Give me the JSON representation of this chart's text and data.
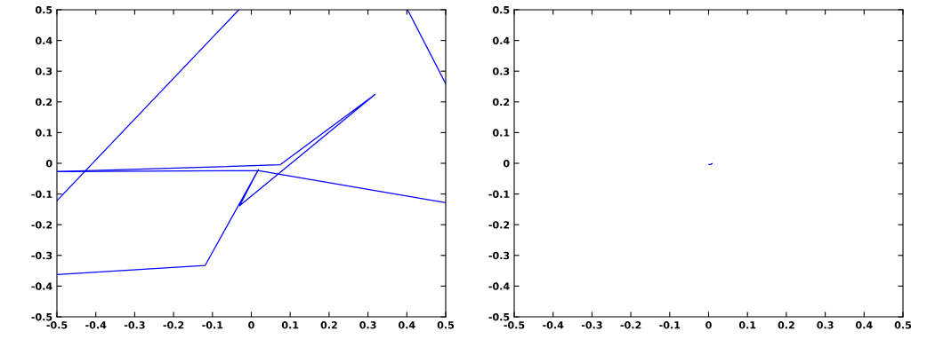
{
  "chart_data": [
    {
      "type": "line",
      "xlim": [
        -0.5,
        0.5
      ],
      "ylim": [
        -0.5,
        0.5
      ],
      "xticks": [
        -0.5,
        -0.4,
        -0.3,
        -0.2,
        -0.1,
        0,
        0.1,
        0.2,
        0.3,
        0.4,
        0.5
      ],
      "yticks": [
        -0.5,
        -0.4,
        -0.3,
        -0.2,
        -0.1,
        0,
        0.1,
        0.2,
        0.3,
        0.4,
        0.5
      ],
      "grid": false,
      "legend": false,
      "series": [
        {
          "color": "#0000ff",
          "x": [
            -0.5,
            -0.119,
            0.018,
            -0.03,
            0.318,
            0.074,
            -0.5
          ],
          "values": [
            -0.362,
            -0.333,
            -0.021,
            -0.138,
            0.224,
            -0.005,
            -0.027
          ]
        },
        {
          "color": "#0000ff",
          "x": [
            -0.5,
            0.02,
            0.5
          ],
          "values": [
            -0.027,
            -0.024,
            -0.128
          ]
        },
        {
          "color": "#0000ff",
          "x": [
            -0.5,
            -0.032
          ],
          "values": [
            -0.122,
            0.5
          ]
        },
        {
          "color": "#0000ff",
          "x": [
            0.402,
            0.5
          ],
          "values": [
            0.5,
            0.259
          ]
        }
      ]
    },
    {
      "type": "line",
      "xlim": [
        -0.5,
        0.5
      ],
      "ylim": [
        -0.5,
        0.5
      ],
      "xticks": [
        -0.5,
        -0.4,
        -0.3,
        -0.2,
        -0.1,
        0,
        0.1,
        0.2,
        0.3,
        0.4,
        0.5
      ],
      "yticks": [
        -0.5,
        -0.4,
        -0.3,
        -0.2,
        -0.1,
        0,
        0.1,
        0.2,
        0.3,
        0.4,
        0.5
      ],
      "grid": false,
      "legend": false,
      "series": [
        {
          "color": "#0000ff",
          "x": [
            0.001,
            0.005,
            0.009
          ],
          "values": [
            -0.004,
            -0.004,
            -0.001
          ]
        }
      ]
    }
  ]
}
